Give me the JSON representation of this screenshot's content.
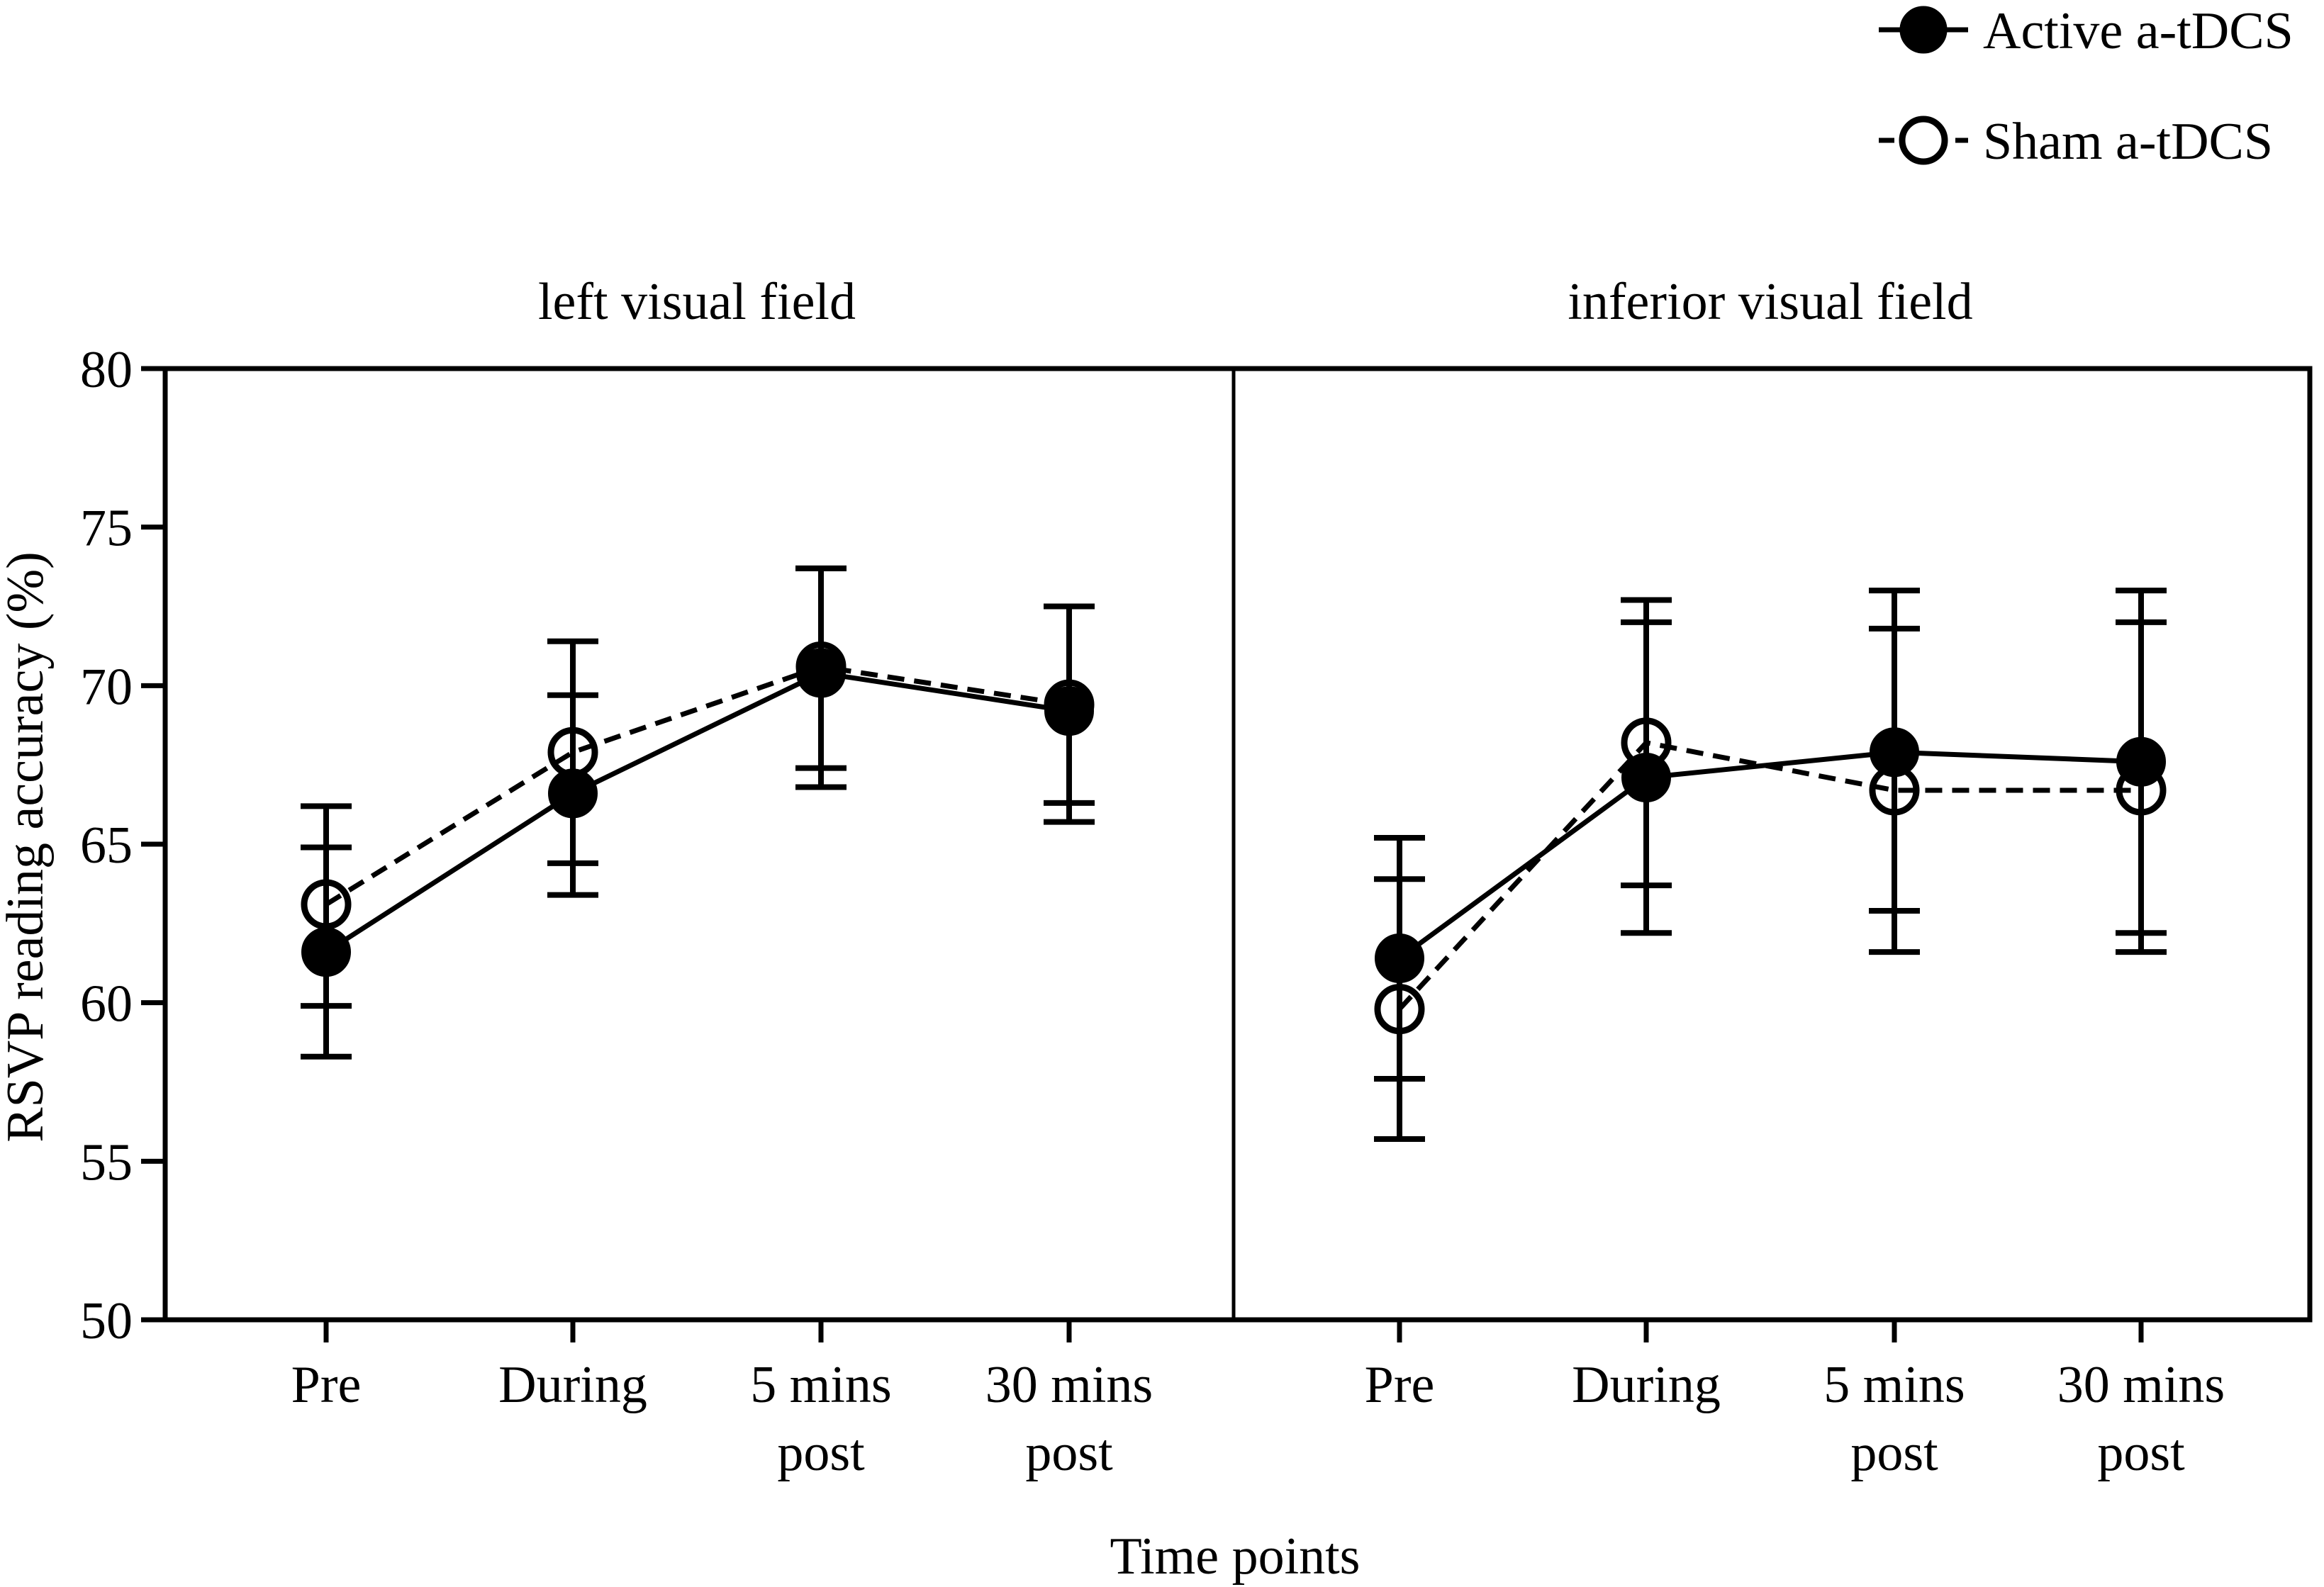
{
  "chart_data": {
    "type": "line",
    "y_label": "RSVP reading accuracy (%)",
    "x_label": "Time points",
    "ylim": [
      50,
      80
    ],
    "y_ticks": [
      "50",
      "55",
      "60",
      "65",
      "70",
      "75",
      "80"
    ],
    "categories": [
      [
        "Pre"
      ],
      [
        "During"
      ],
      [
        "5 mins",
        "post"
      ],
      [
        "30 mins",
        "post"
      ]
    ],
    "legend": {
      "position": "top-right",
      "active": "Active a-tDCS",
      "sham": "Sham a-tDCS"
    },
    "panels": [
      {
        "title": "left visual field",
        "series": [
          {
            "name": "Active a-tDCS",
            "style": "solid-filled",
            "values": [
              61.6,
              66.6,
              70.4,
              69.2
            ],
            "err_low": [
              58.3,
              63.4,
              67.4,
              65.7
            ],
            "err_high": [
              64.9,
              69.7,
              73.7,
              72.5
            ]
          },
          {
            "name": "Sham a-tDCS",
            "style": "dashed-open",
            "values": [
              63.1,
              67.9,
              70.6,
              69.4
            ],
            "err_low": [
              59.9,
              64.4,
              66.8,
              66.3
            ],
            "err_high": [
              66.2,
              71.4,
              73.7,
              72.5
            ]
          }
        ]
      },
      {
        "title": "inferior visual field",
        "series": [
          {
            "name": "Active a-tDCS",
            "style": "solid-filled",
            "values": [
              61.4,
              67.1,
              67.9,
              67.6
            ],
            "err_low": [
              57.6,
              62.2,
              62.9,
              62.2
            ],
            "err_high": [
              65.2,
              72.0,
              73.0,
              73.0
            ]
          },
          {
            "name": "Sham a-tDCS",
            "style": "dashed-open",
            "values": [
              59.8,
              68.2,
              66.7,
              66.7
            ],
            "err_low": [
              55.7,
              63.7,
              61.6,
              61.6
            ],
            "err_high": [
              63.9,
              72.7,
              71.8,
              72.0
            ]
          }
        ]
      }
    ]
  }
}
